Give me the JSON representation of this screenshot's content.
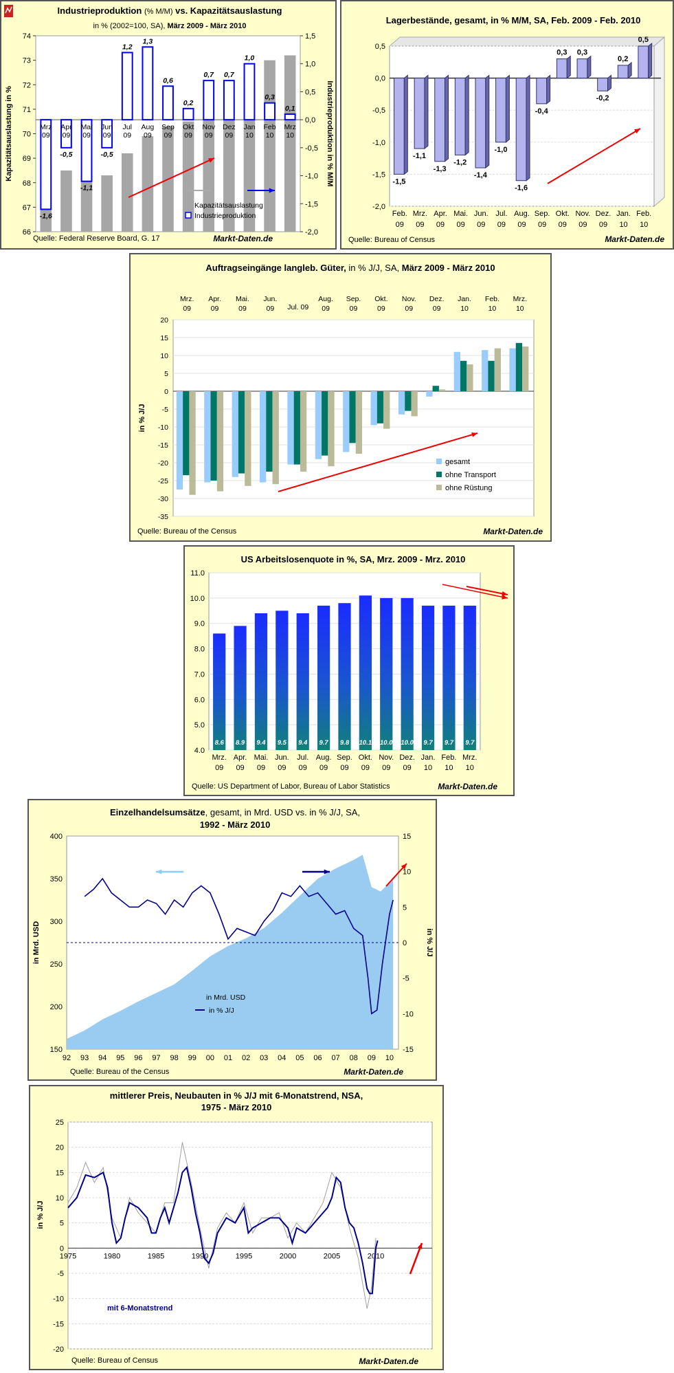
{
  "chart_data": [
    {
      "type": "bar",
      "title_main": "Industrieproduktion",
      "title_unit": "(% M/M)",
      "title_rest": "vs. Kapazitätsauslastung",
      "subtitle_pre": "in % (2002=100, SA),",
      "subtitle_bold": "März 2009 - März 2010",
      "categories": [
        "Mrz 09",
        "Apr 09",
        "Mai 09",
        "Jun 09",
        "Jul 09",
        "Aug 09",
        "Sep 09",
        "Okt 09",
        "Nov 09",
        "Dez 09",
        "Jan 10",
        "Feb 10",
        "Mrz 10"
      ],
      "series": [
        {
          "name": "Kapazitätsauslastung",
          "values": [
            68.7,
            68.5,
            68.3,
            68.3,
            69.2,
            69.9,
            70.3,
            70.5,
            71.2,
            71.5,
            71.7,
            73.0,
            73.2
          ],
          "color": "#a6a6a6"
        },
        {
          "name": "Industrieproduktion",
          "values": [
            -1.6,
            -0.5,
            -1.1,
            -0.5,
            1.2,
            1.3,
            0.6,
            0.2,
            0.7,
            0.7,
            1.0,
            0.3,
            0.1
          ],
          "color": "#0000ff"
        }
      ],
      "data_labels": [
        "-1,6",
        "-0,5",
        "-1,1",
        "-0,5",
        "1,2",
        "1,3",
        "0,6",
        "0,2",
        "0,7",
        "0,7",
        "1,0",
        "0,3",
        "0,1"
      ],
      "ylabel_left": "Kapazitätsauslastung in %",
      "ylabel_right": "Industrieproduktion in % M/M",
      "yticks_left": [
        "66",
        "67",
        "68",
        "69",
        "70",
        "71",
        "72",
        "73",
        "74"
      ],
      "ylim_left": [
        66,
        74
      ],
      "yticks_right": [
        "-2,0",
        "-1,5",
        "-1,0",
        "-0,5",
        "0,0",
        "0,5",
        "1,0",
        "1,5"
      ],
      "ylim_right": [
        -2,
        1.5
      ],
      "source": "Quelle: Federal Reserve Board, G. 17",
      "brand": "Markt-Daten.de"
    },
    {
      "type": "bar",
      "title": "Lagerbestände, gesamt, in % M/M, SA, Feb. 2009 - Feb. 2010",
      "categories": [
        "Feb. 09",
        "Mrz. 09",
        "Apr. 09",
        "Mai. 09",
        "Jun. 09",
        "Jul. 09",
        "Aug. 09",
        "Sep. 09",
        "Okt. 09",
        "Nov. 09",
        "Dez. 09",
        "Jan. 10",
        "Feb. 10"
      ],
      "values": [
        -1.5,
        -1.1,
        -1.3,
        -1.2,
        -1.4,
        -1.0,
        -1.6,
        -0.4,
        0.3,
        0.3,
        -0.2,
        0.2,
        0.5
      ],
      "data_labels": [
        "-1,5",
        "-1,1",
        "-1,3",
        "-1,2",
        "-1,4",
        "-1,0",
        "-1,6",
        "-0,4",
        "0,3",
        "0,3",
        "-0,2",
        "0,2",
        "0,5"
      ],
      "yticks": [
        "-2,0",
        "-1,5",
        "-1,0",
        "-0,5",
        "0,0",
        "0,5"
      ],
      "ylim": [
        -2,
        0.5
      ],
      "source": "Quelle: Bureau of Census",
      "brand": "Markt-Daten.de"
    },
    {
      "type": "bar",
      "title_bold": "Auftragseingänge langleb. Güter,",
      "title_rest": "in % J/J, SA,",
      "title_bold2": "März 2009 - März 2010",
      "categories": [
        "Mrz. 09",
        "Apr. 09",
        "Mai. 09",
        "Jun. 09",
        "Jul. 09",
        "Aug. 09",
        "Sep. 09",
        "Okt. 09",
        "Nov. 09",
        "Dez. 09",
        "Jan. 10",
        "Feb. 10",
        "Mrz. 10"
      ],
      "series": [
        {
          "name": "gesamt",
          "values": [
            -27.5,
            -25.5,
            -24,
            -25.5,
            -20.5,
            -19,
            -17,
            -9.5,
            -6.5,
            -1.5,
            11,
            11.5,
            12
          ],
          "color": "#99ccff"
        },
        {
          "name": "ohne Transport",
          "values": [
            -23.5,
            -25,
            -23,
            -22.5,
            -20.5,
            -18,
            -14.5,
            -9,
            -5.5,
            1.5,
            8.5,
            8.5,
            13.5
          ],
          "color": "#007766"
        },
        {
          "name": "ohne Rüstung",
          "values": [
            -29,
            -28,
            -26.5,
            -26,
            -22.5,
            -21,
            -17.5,
            -10.5,
            -7,
            0.5,
            7.5,
            12,
            12.5
          ],
          "color": "#bbbb99"
        }
      ],
      "ylabel": "in % J/J",
      "yticks": [
        "-35",
        "-30",
        "-25",
        "-20",
        "-15",
        "-10",
        "-5",
        "0",
        "5",
        "10",
        "15",
        "20"
      ],
      "ylim": [
        -35,
        20
      ],
      "source": "Quelle: Bureau of the Census",
      "brand": "Markt-Daten.de"
    },
    {
      "type": "bar",
      "title": "US Arbeitslosenquote in %, SA, Mrz. 2009 - Mrz. 2010",
      "categories": [
        "Mrz. 09",
        "Apr. 09",
        "Mai. 09",
        "Jun. 09",
        "Jul. 09",
        "Aug. 09",
        "Sep. 09",
        "Okt. 09",
        "Nov. 09",
        "Dez. 09",
        "Jan. 10",
        "Feb. 10",
        "Mrz. 10"
      ],
      "values": [
        8.6,
        8.9,
        9.4,
        9.5,
        9.4,
        9.7,
        9.8,
        10.1,
        10.0,
        10.0,
        9.7,
        9.7,
        9.7
      ],
      "data_labels": [
        "8.6",
        "8.9",
        "9.4",
        "9.5",
        "9.4",
        "9.7",
        "9.8",
        "10.1",
        "10.0",
        "10.0",
        "9.7",
        "9.7",
        "9.7"
      ],
      "yticks": [
        "4.0",
        "5.0",
        "6.0",
        "7.0",
        "8.0",
        "9.0",
        "10.0",
        "11.0"
      ],
      "ylim": [
        4,
        11
      ],
      "source": "Quelle: US Department of Labor, Bureau of Labor Statistics",
      "brand": "Markt-Daten.de"
    },
    {
      "type": "bar",
      "title_bold": "Einzelhandelsumsätze",
      "title_rest": ", gesamt,  in Mrd. USD vs. in % J/J, SA,",
      "title_line2": "1992 - März 2010",
      "ylabel_left": "in Mrd. USD",
      "ylabel_right": "in % J/J",
      "yticks_left": [
        "150",
        "200",
        "250",
        "300",
        "350",
        "400"
      ],
      "ylim_left": [
        150,
        400
      ],
      "yticks_right": [
        "-15",
        "-10",
        "-5",
        "0",
        "5",
        "10",
        "15"
      ],
      "ylim_right": [
        -15,
        15
      ],
      "xticks": [
        "92",
        "93",
        "94",
        "95",
        "96",
        "97",
        "98",
        "99",
        "00",
        "01",
        "02",
        "03",
        "04",
        "05",
        "06",
        "07",
        "08",
        "09",
        "10"
      ],
      "series": [
        {
          "name": "in Mrd. USD",
          "x": [
            1992,
            1993,
            1994,
            1995,
            1996,
            1997,
            1998,
            1999,
            2000,
            2001,
            2002,
            2003,
            2004,
            2005,
            2006,
            2007,
            2008,
            2008.5,
            2009,
            2009.5,
            2010,
            2010.2
          ],
          "values": [
            162,
            172,
            185,
            195,
            206,
            216,
            226,
            242,
            259,
            271,
            280,
            292,
            310,
            330,
            350,
            362,
            372,
            378,
            340,
            335,
            345,
            352
          ],
          "color": "#99ccf0"
        },
        {
          "name": "in % J/J",
          "x": [
            1993,
            1993.5,
            1994,
            1994.5,
            1995,
            1995.5,
            1996,
            1996.5,
            1997,
            1997.5,
            1998,
            1998.5,
            1999,
            1999.5,
            2000,
            2000.5,
            2001,
            2001.5,
            2002,
            2002.5,
            2003,
            2003.5,
            2004,
            2004.5,
            2005,
            2005.5,
            2006,
            2006.5,
            2007,
            2007.5,
            2008,
            2008.5,
            2008.8,
            2009,
            2009.3,
            2009.6,
            2010,
            2010.2
          ],
          "values": [
            6.5,
            7.5,
            9,
            7,
            6,
            5,
            5,
            6,
            5.5,
            4,
            6,
            5,
            7,
            8,
            7,
            4,
            0.5,
            2,
            1.5,
            1,
            3,
            4.5,
            7,
            6.5,
            8,
            6.5,
            7,
            5.5,
            4,
            4.5,
            2,
            1,
            -5,
            -10,
            -9.5,
            -3,
            4,
            6
          ],
          "color": "#00008b"
        }
      ],
      "source": "Quelle: Bureau of the Census",
      "brand": "Markt-Daten.de"
    },
    {
      "type": "line",
      "title": "mittlerer Preis, Neubauten in % J/J mit 6-Monatstrend, NSA,",
      "title_line2": "1975 - März 2010",
      "ylabel": "in % J/J",
      "yticks": [
        "-20",
        "-15",
        "-10",
        "-5",
        "0",
        "5",
        "10",
        "15",
        "20",
        "25"
      ],
      "ylim": [
        -20,
        25
      ],
      "xticks": [
        "1975",
        "1980",
        "1985",
        "1990",
        "1995",
        "2000",
        "2005",
        "2010"
      ],
      "series": [
        {
          "name": "mit 6-Monatstrend",
          "x": [
            1975,
            1976,
            1977,
            1978,
            1979,
            1979.5,
            1980,
            1980.5,
            1981,
            1981.5,
            1982,
            1983,
            1984,
            1984.5,
            1985,
            1985.5,
            1986,
            1986.5,
            1987,
            1987.5,
            1988,
            1988.5,
            1989,
            1989.5,
            1990,
            1990.5,
            1991,
            1991.5,
            1992,
            1993,
            1994,
            1995,
            1995.5,
            1996,
            1997,
            1998,
            1999,
            2000,
            2000.5,
            2001,
            2002,
            2003,
            2004,
            2004.5,
            2005,
            2005.5,
            2006,
            2006.5,
            2007,
            2007.5,
            2008,
            2008.5,
            2009,
            2009.3,
            2009.6,
            2010,
            2010.2
          ],
          "values": [
            8,
            10,
            14.5,
            14,
            15,
            12,
            5,
            1,
            2,
            6,
            9,
            8,
            6,
            3,
            3,
            6,
            8,
            5,
            8,
            11,
            15,
            16,
            12,
            7,
            3,
            -2,
            -3,
            -1,
            3,
            6,
            5,
            8,
            3,
            4,
            5,
            6,
            6,
            4,
            1,
            4,
            3,
            5,
            7,
            8,
            10,
            14,
            13,
            8,
            5,
            4,
            1,
            -3,
            -8,
            -9,
            -9,
            0,
            1.5
          ],
          "color": "#00008b"
        },
        {
          "name": "",
          "x": [
            1975,
            1976,
            1977,
            1978,
            1979,
            1980,
            1981,
            1982,
            1983,
            1984,
            1985,
            1986,
            1987,
            1988,
            1989,
            1990,
            1991,
            1992,
            1993,
            1994,
            1995,
            1996,
            1997,
            1998,
            1999,
            2000,
            2001,
            2002,
            2003,
            2004,
            2005,
            2006,
            2007,
            2008,
            2009,
            2009.5,
            2010
          ],
          "values": [
            9,
            12,
            17,
            13,
            16,
            6,
            2,
            10,
            7,
            5,
            3,
            9,
            9,
            21,
            13,
            4,
            -4,
            4,
            7,
            5,
            9,
            3,
            6,
            6,
            7,
            2,
            5,
            3,
            6,
            9,
            15,
            12,
            4,
            -2,
            -12,
            -8,
            2
          ],
          "color": "#a0a0a0"
        }
      ],
      "legend_text": "mit 6-Monatstrend",
      "source": "Quelle: Bureau of Census",
      "brand": "Markt-Daten.de"
    }
  ]
}
